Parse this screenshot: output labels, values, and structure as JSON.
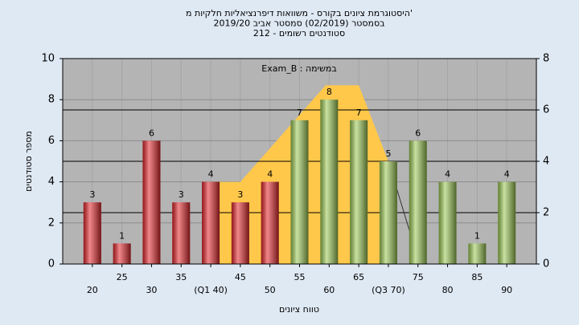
{
  "chart_data": {
    "type": "bar",
    "title_lines": [
      "היסטוגרמת ציונים בקורס - משוואות דיפרנציאליות חלקיות מ'",
      "בסמסטר  (02/2019)  סמסטר אביב 2019/20",
      "סטודנטים רשומים - 212"
    ],
    "annotation": "Exam_B : במשימה",
    "xlabel": "טווח ציונים",
    "ylabel": "מספר סטודנטים",
    "x": [
      20,
      25,
      30,
      35,
      40,
      45,
      50,
      55,
      60,
      65,
      70,
      75,
      80,
      85,
      90
    ],
    "values": [
      3,
      1,
      6,
      3,
      4,
      3,
      4,
      7,
      8,
      7,
      5,
      6,
      4,
      1,
      4
    ],
    "colors": [
      "#e4262b",
      "#e4262b",
      "#e4262b",
      "#e4262b",
      "#e4262b",
      "#e4262b",
      "#e4262b",
      "#9cc954",
      "#9cc954",
      "#9cc954",
      "#9cc954",
      "#9cc954",
      "#9cc954",
      "#9cc954",
      "#9cc954"
    ],
    "xlim": [
      15,
      95
    ],
    "xticks": [
      20,
      25,
      30,
      35,
      {
        "value": 40,
        "label": "(Q1 40)"
      },
      45,
      50,
      55,
      60,
      65,
      {
        "value": 70,
        "label": "(Q3 70)"
      },
      75,
      80,
      85,
      90
    ],
    "ylim": [
      0,
      10
    ],
    "yticks": [
      0,
      2,
      4,
      6,
      8,
      10
    ],
    "y2lim": [
      0,
      8
    ],
    "y2ticks": [
      0,
      2,
      4,
      6,
      8
    ],
    "overlay": {
      "type": "area",
      "color": "#ffc84a",
      "x": [
        40,
        45,
        59.4,
        65,
        70
      ],
      "values": [
        4,
        4,
        8.7,
        8.7,
        5
      ]
    },
    "trend": {
      "type": "line",
      "color": "#333333",
      "x": [
        70,
        73.7
      ],
      "values": [
        5,
        1.5
      ]
    },
    "grid": true
  }
}
